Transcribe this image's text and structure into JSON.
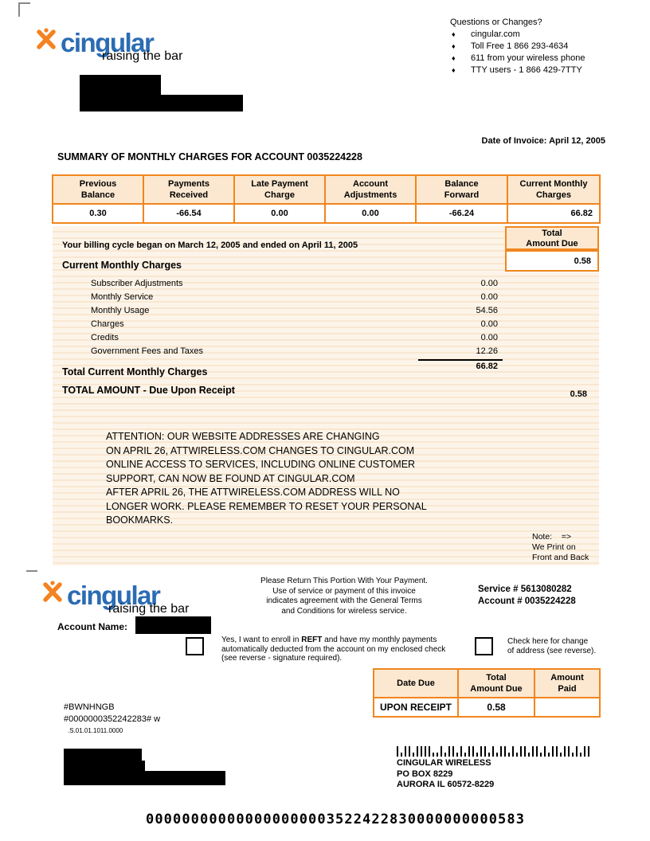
{
  "colors": {
    "orange_border": "#F0861E",
    "peach_fill": "#FCE8D0",
    "logo_blue": "#2B6CB3",
    "logo_orange": "#F58220"
  },
  "brand": {
    "name": "cingular",
    "tagline": "raising the bar"
  },
  "top": {
    "contact": {
      "heading": "Questions or Changes?",
      "bullet": "♦",
      "items": [
        "cingular.com",
        "Toll Free 1 866 293-4634",
        "611 from your wireless phone",
        "TTY users - 1 866 429-7TTY"
      ]
    },
    "invoice_date": "Date of Invoice: April 12, 2005",
    "summary_title": "SUMMARY OF MONTHLY CHARGES FOR ACCOUNT 0035224228",
    "summary_table": {
      "headers": [
        "Previous\nBalance",
        "Payments\nReceived",
        "Late Payment\nCharge",
        "Account\nAdjustments",
        "Balance\nForward",
        "Current Monthly\nCharges"
      ],
      "values": [
        "0.30",
        "-66.54",
        "0.00",
        "0.00",
        "-66.24",
        "66.82"
      ]
    },
    "billing_cycle": "Your billing cycle began on March 12, 2005 and ended on April 11, 2005",
    "current_charges_heading": "Current Monthly Charges",
    "total_due_box": {
      "label": "Total\nAmount Due",
      "value": "0.58"
    },
    "line_items": [
      {
        "label": "Subscriber Adjustments",
        "value": "0.00"
      },
      {
        "label": "Monthly Service",
        "value": "0.00"
      },
      {
        "label": "Monthly Usage",
        "value": "54.56"
      },
      {
        "label": "Charges",
        "value": "0.00"
      },
      {
        "label": "Credits",
        "value": "0.00"
      },
      {
        "label": "Government Fees and Taxes",
        "value": "12.26"
      }
    ],
    "total_current": {
      "label": "Total Current Monthly Charges",
      "value": "66.82"
    },
    "total_amount": {
      "label": "TOTAL AMOUNT - Due Upon Receipt",
      "value": "0.58"
    },
    "attention_lines": [
      "ATTENTION:  OUR WEBSITE ADDRESSES ARE CHANGING",
      "ON APRIL 26, ATTWIRELESS.COM CHANGES TO CINGULAR.COM",
      "ONLINE ACCESS TO SERVICES, INCLUDING ONLINE CUSTOMER",
      "SUPPORT, CAN NOW BE FOUND AT CINGULAR.COM",
      "AFTER APRIL 26, THE ATTWIRELESS.COM ADDRESS WILL NO",
      "LONGER WORK.  PLEASE REMEMBER TO RESET YOUR PERSONAL",
      "BOOKMARKS."
    ],
    "note_lines": [
      "Note:    =>",
      "We Print on",
      "Front and Back"
    ]
  },
  "stub": {
    "return_lines": [
      "Please Return This Portion With Your Payment.",
      "Use of service or payment of this invoice",
      "indicates agreement with the General Terms",
      "and Conditions for wireless service."
    ],
    "service_number": "Service # 5613080282",
    "account_number": "Account # 0035224228",
    "account_name_label": "Account Name:",
    "reft": {
      "pre": "Yes, I want to enroll in ",
      "bold": "REFT",
      "post": " and have my monthly payments",
      "line2": "automatically deducted from the account on my enclosed check",
      "line3": "(see reverse - signature required)."
    },
    "address_change_lines": [
      "Check here for change",
      "of address (see reverse)."
    ],
    "payment_table": {
      "headers": [
        "Date Due",
        "Total\nAmount Due",
        "Amount\nPaid"
      ],
      "values": [
        "UPON RECEIPT",
        "0.58",
        ""
      ]
    },
    "codes": [
      "#BWNHNGB",
      "#0000000352242283# w",
      ".S.01.01.1011.0000"
    ],
    "remit_lines": [
      "CINGULAR WIRELESS",
      "PO BOX 8229",
      "AURORA IL 60572-8229"
    ],
    "barcode_pattern": "1011011110010110101101101011010110110101101101011",
    "ocr_line": "000000000000000000003522422830000000000583"
  }
}
